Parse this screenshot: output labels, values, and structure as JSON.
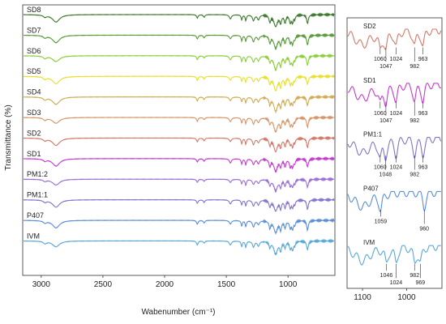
{
  "chart_data": [
    {
      "type": "line",
      "xlabel": "Wabenumber (cm⁻¹)",
      "ylabel": "Transmittance (%)",
      "xlim": [
        3150,
        620
      ],
      "x_reversed": true,
      "x_ticks": [
        "3000",
        "2500",
        "2000",
        "1500",
        "1000"
      ],
      "x_tick_values": [
        3000,
        2500,
        2000,
        1500,
        1000
      ],
      "series": [
        {
          "name": "SD8",
          "color": "#3e7a2e"
        },
        {
          "name": "SD7",
          "color": "#5a9b3a"
        },
        {
          "name": "SD6",
          "color": "#8ccf3b"
        },
        {
          "name": "SD5",
          "color": "#e8e02a"
        },
        {
          "name": "SD4",
          "color": "#d2ab52"
        },
        {
          "name": "SD3",
          "color": "#d8966a"
        },
        {
          "name": "SD2",
          "color": "#d47a6a"
        },
        {
          "name": "SD1",
          "color": "#c63bd2"
        },
        {
          "name": "PM1:2",
          "color": "#9b6fd6"
        },
        {
          "name": "PM1:1",
          "color": "#8574cc"
        },
        {
          "name": "P407",
          "color": "#5b8fd8"
        },
        {
          "name": "IVM",
          "color": "#5aa8d8"
        }
      ],
      "bands": [
        {
          "x": 2880,
          "depth": 0.55,
          "width": 35
        },
        {
          "x": 2970,
          "depth": 0.18,
          "width": 15
        },
        {
          "x": 1735,
          "depth": 0.3,
          "width": 7
        },
        {
          "x": 1680,
          "depth": 0.2,
          "width": 7
        },
        {
          "x": 1467,
          "depth": 0.3,
          "width": 10
        },
        {
          "x": 1375,
          "depth": 0.4,
          "width": 6
        },
        {
          "x": 1342,
          "depth": 0.55,
          "width": 6
        },
        {
          "x": 1280,
          "depth": 0.45,
          "width": 10
        },
        {
          "x": 1240,
          "depth": 0.35,
          "width": 10
        },
        {
          "x": 1147,
          "depth": 0.5,
          "width": 8
        },
        {
          "x": 1100,
          "depth": 1.0,
          "width": 18
        },
        {
          "x": 1060,
          "depth": 0.65,
          "width": 8
        },
        {
          "x": 1024,
          "depth": 0.55,
          "width": 8
        },
        {
          "x": 982,
          "depth": 0.55,
          "width": 8
        },
        {
          "x": 963,
          "depth": 0.6,
          "width": 8
        },
        {
          "x": 945,
          "depth": 0.35,
          "width": 6
        },
        {
          "x": 842,
          "depth": 0.7,
          "width": 8
        }
      ]
    },
    {
      "type": "line",
      "xlabel": "",
      "ylabel": "",
      "xlim": [
        1135,
        920
      ],
      "x_reversed": true,
      "x_ticks": [
        "1100",
        "1000"
      ],
      "x_tick_values": [
        1100,
        1000
      ],
      "panels": [
        {
          "name": "SD2",
          "color": "#d47a6a",
          "peaks": [
            "1060",
            "1047",
            "1024",
            "982",
            "963"
          ],
          "peak_x": [
            1060,
            1047,
            1024,
            982,
            963
          ]
        },
        {
          "name": "SD1",
          "color": "#c63bd2",
          "peaks": [
            "1060",
            "1047",
            "1024",
            "982",
            "963"
          ],
          "peak_x": [
            1060,
            1047,
            1024,
            982,
            963
          ]
        },
        {
          "name": "PM1:1",
          "color": "#8574cc",
          "peaks": [
            "1060",
            "1048",
            "1024",
            "982",
            "963"
          ],
          "peak_x": [
            1060,
            1048,
            1024,
            982,
            963
          ]
        },
        {
          "name": "P407",
          "color": "#5b8fd8",
          "peaks": [
            "1059",
            "960"
          ],
          "peak_x": [
            1059,
            960
          ]
        },
        {
          "name": "IVM",
          "color": "#5aa8d8",
          "peaks": [
            "1046",
            "1024",
            "982",
            "969"
          ],
          "peak_x": [
            1046,
            1024,
            982,
            969
          ]
        }
      ]
    }
  ]
}
